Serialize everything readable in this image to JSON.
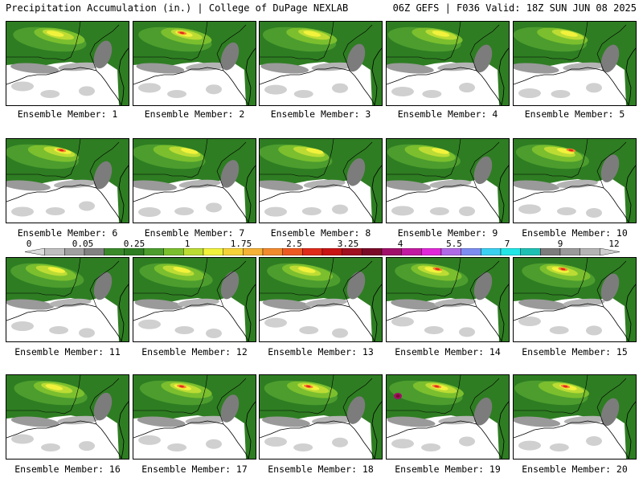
{
  "header": {
    "left": "Precipitation Accumulation (in.) | College of DuPage NEXLAB",
    "right": "06Z GEFS | F036 Valid: 18Z SUN JUN 08 2025"
  },
  "colorbar": {
    "tick_labels": [
      "0",
      "0.05",
      "0.25",
      "1",
      "1.75",
      "2.5",
      "3.25",
      "4",
      "5.5",
      "7",
      "9",
      "12"
    ],
    "colors": [
      "#dcdcdc",
      "#bfbfbf",
      "#a0a0a0",
      "#828282",
      "#3a8a2a",
      "#2e7d22",
      "#4c9d2e",
      "#7bbf2e",
      "#bcdc34",
      "#f2f23c",
      "#f6d23a",
      "#f5b236",
      "#f28a2e",
      "#ec5a22",
      "#e02a1a",
      "#c81414",
      "#a01020",
      "#7a0a28",
      "#a0106a",
      "#c21aa0",
      "#e028d8",
      "#b06ae6",
      "#7c8cf0",
      "#3ad0f2",
      "#22e6e6",
      "#1ec0b4",
      "#7c7c7c",
      "#9a9a9a",
      "#b4b4b4",
      "#cfcfcf"
    ]
  },
  "members": [
    {
      "label": "Ensemble Member: 1"
    },
    {
      "label": "Ensemble Member: 2"
    },
    {
      "label": "Ensemble Member: 3"
    },
    {
      "label": "Ensemble Member: 4"
    },
    {
      "label": "Ensemble Member: 5"
    },
    {
      "label": "Ensemble Member: 6"
    },
    {
      "label": "Ensemble Member: 7"
    },
    {
      "label": "Ensemble Member: 8"
    },
    {
      "label": "Ensemble Member: 9"
    },
    {
      "label": "Ensemble Member: 10"
    },
    {
      "label": "Ensemble Member: 11"
    },
    {
      "label": "Ensemble Member: 12"
    },
    {
      "label": "Ensemble Member: 13"
    },
    {
      "label": "Ensemble Member: 14"
    },
    {
      "label": "Ensemble Member: 15"
    },
    {
      "label": "Ensemble Member: 16"
    },
    {
      "label": "Ensemble Member: 17"
    },
    {
      "label": "Ensemble Member: 18"
    },
    {
      "label": "Ensemble Member: 19"
    },
    {
      "label": "Ensemble Member: 20"
    }
  ]
}
